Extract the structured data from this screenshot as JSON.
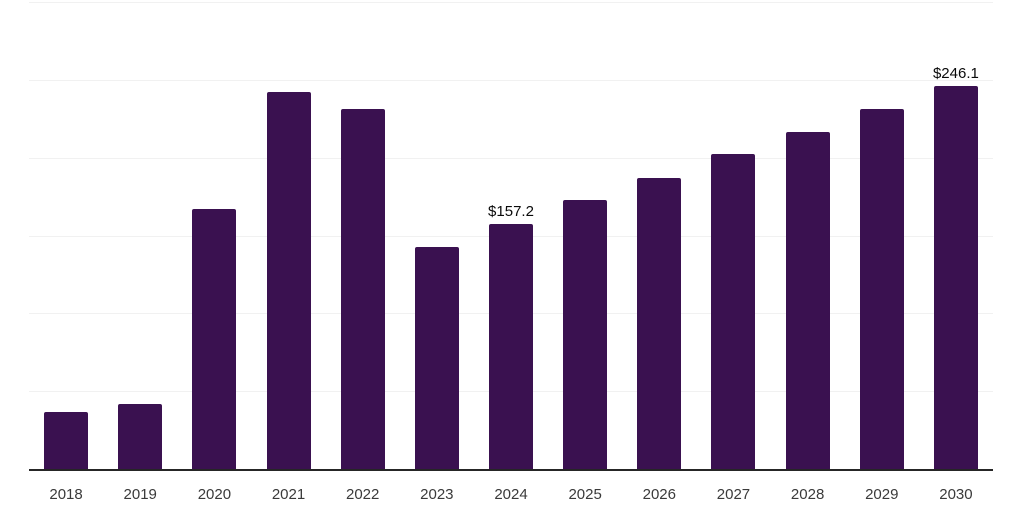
{
  "chart_data": {
    "type": "bar",
    "title": "",
    "xlabel": "",
    "ylabel": "",
    "categories": [
      "2018",
      "2019",
      "2020",
      "2021",
      "2022",
      "2023",
      "2024",
      "2025",
      "2026",
      "2027",
      "2028",
      "2029",
      "2030"
    ],
    "values": [
      36.5,
      41.8,
      167.3,
      242.1,
      231.0,
      142.4,
      157.2,
      172.7,
      186.8,
      202.2,
      216.7,
      231.4,
      246.1
    ],
    "annotations": [
      {
        "category": "2024",
        "text": "$157.2"
      },
      {
        "category": "2030",
        "text": "$246.1"
      }
    ],
    "ylim": [
      0,
      300
    ],
    "gridline_step": 50,
    "grid": true,
    "y_tick_labels_visible": false,
    "legend": "none",
    "colors": {
      "bar": "#3A1150",
      "gridline": "#f1f1f1",
      "axis_line": "#262626",
      "x_tick_label": "#3a3a3a",
      "value_label": "#0a0a0a",
      "background": "#ffffff"
    }
  }
}
